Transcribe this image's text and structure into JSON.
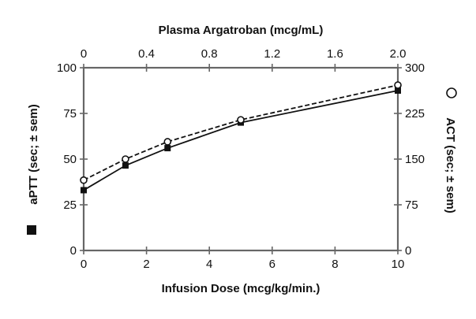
{
  "chart_data": {
    "type": "line",
    "title": "",
    "xlabel": "Infusion Dose (mcg/kg/min.)",
    "x2label": "Plasma Argatroban (mcg/mL)",
    "ylabel": "aPTT (sec; ± sem)",
    "y2label": "ACT (sec; ± sem)",
    "xlim": [
      0,
      10
    ],
    "x2lim": [
      0,
      2.0
    ],
    "ylim": [
      0,
      100
    ],
    "y2lim": [
      0,
      300
    ],
    "x_ticks": [
      "0",
      "2",
      "4",
      "6",
      "8",
      "10"
    ],
    "x2_ticks": [
      "0",
      "0.4",
      "0.8",
      "1.2",
      "1.6",
      "2.0"
    ],
    "y_ticks": [
      "0",
      "25",
      "50",
      "75",
      "100"
    ],
    "y2_ticks": [
      "0",
      "75",
      "150",
      "225",
      "300"
    ],
    "grid": false,
    "legend": "axis-label markers (■ aPTT left, ○ ACT right)",
    "x": [
      0,
      1.33,
      2.67,
      5,
      10
    ],
    "series": [
      {
        "name": "aPTT",
        "axis": "left",
        "marker": "filled-square",
        "line": "solid",
        "values": [
          33,
          46.5,
          56,
          70,
          87.5
        ]
      },
      {
        "name": "ACT",
        "axis": "right",
        "marker": "open-circle",
        "line": "dashed",
        "values": [
          115.5,
          150,
          178.5,
          214.5,
          271.5
        ]
      }
    ]
  },
  "labels": {
    "xlabel": "Infusion Dose (mcg/kg/min.)",
    "x2label": "Plasma Argatroban (mcg/mL)",
    "ylabel": "aPTT (sec; ± sem)",
    "y2label": "ACT (sec; ± sem)"
  }
}
